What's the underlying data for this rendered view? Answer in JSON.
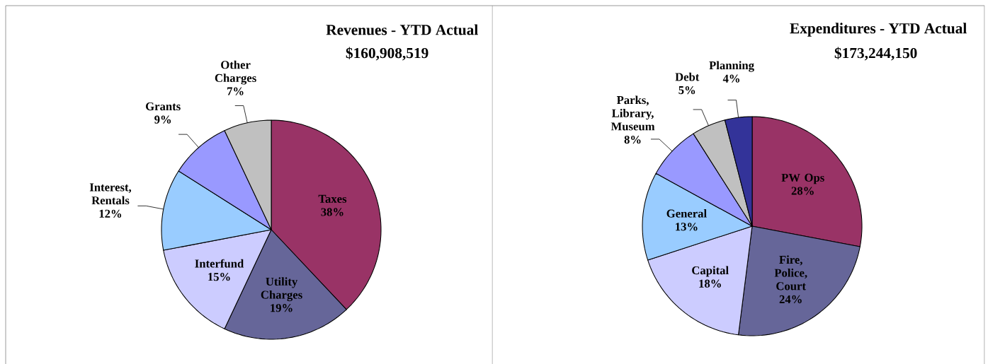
{
  "chart_data": [
    {
      "type": "pie",
      "title": "Revenues - YTD Actual",
      "subtitle": "$160,908,519",
      "categories": [
        "Taxes",
        "Utility Charges",
        "Interfund",
        "Interest, Rentals",
        "Grants",
        "Other Charges"
      ],
      "values": [
        38,
        19,
        15,
        12,
        9,
        7
      ],
      "value_labels": [
        "38%",
        "19%",
        "15%",
        "12%",
        "9%",
        "7%"
      ],
      "colors": [
        "#993366",
        "#666699",
        "#ccccff",
        "#99ccff",
        "#9999ff",
        "#c0c0c0"
      ]
    },
    {
      "type": "pie",
      "title": "Expenditures - YTD Actual",
      "subtitle": "$173,244,150",
      "categories": [
        "PW Ops",
        "Fire, Police, Court",
        "Capital",
        "General",
        "Parks, Library, Museum",
        "Debt",
        "Planning"
      ],
      "values": [
        28,
        24,
        18,
        13,
        8,
        5,
        4
      ],
      "value_labels": [
        "28%",
        "24%",
        "18%",
        "13%",
        "8%",
        "5%",
        "4%"
      ],
      "colors": [
        "#993366",
        "#666699",
        "#ccccff",
        "#99ccff",
        "#9999ff",
        "#c0c0c0",
        "#333399"
      ]
    }
  ]
}
